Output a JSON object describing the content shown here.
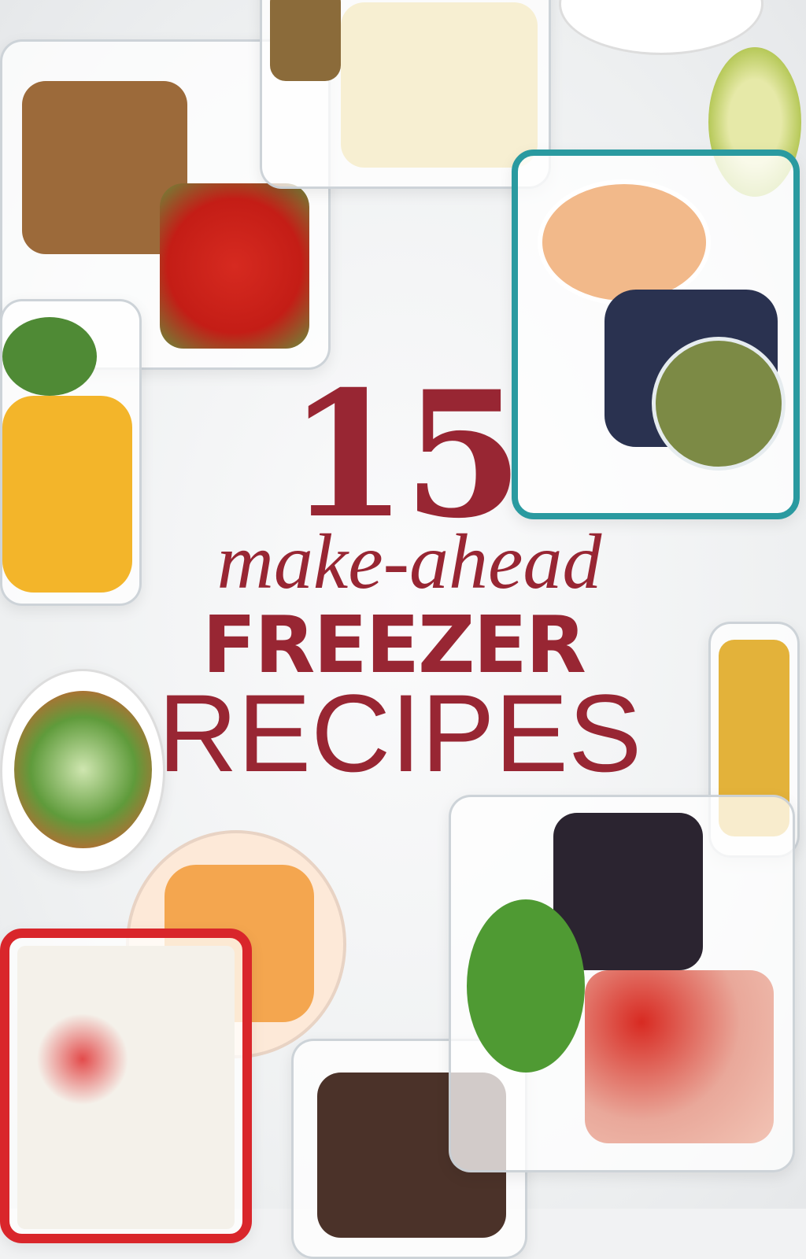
{
  "title": {
    "number": "15",
    "subtitle": "make-ahead",
    "line1": "FREEZER",
    "line2": "RECIPES"
  },
  "colors": {
    "title_red": "#982633",
    "background": "#f1f2f3",
    "teal_container": "#2a9aa0",
    "red_container": "#d9262b"
  }
}
